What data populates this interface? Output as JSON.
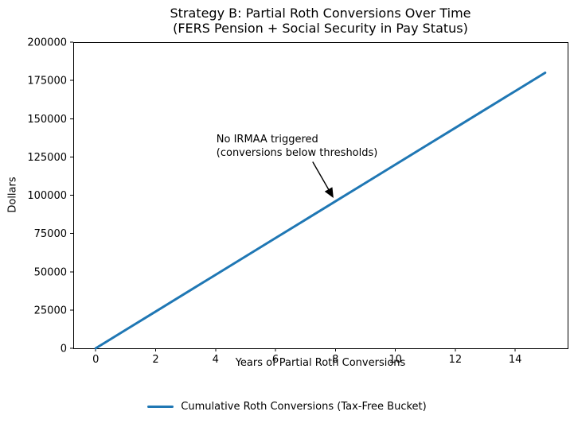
{
  "figure": {
    "title_line1": "Strategy B: Partial Roth Conversions Over Time",
    "title_line2": "(FERS Pension + Social Security in Pay Status)",
    "xlabel": "Years of Partial Roth Conversions",
    "ylabel": "Dollars",
    "legend": {
      "label": "Cumulative Roth Conversions (Tax-Free Bucket)",
      "color": "#1f77b4"
    }
  },
  "chart_data": {
    "type": "line",
    "title": "Strategy B: Partial Roth Conversions Over Time\n(FERS Pension + Social Security in Pay Status)",
    "xlabel": "Years of Partial Roth Conversions",
    "ylabel": "Dollars",
    "x": [
      0,
      1,
      2,
      3,
      4,
      5,
      6,
      7,
      8,
      9,
      10,
      11,
      12,
      13,
      14,
      15
    ],
    "series": [
      {
        "name": "Cumulative Roth Conversions (Tax-Free Bucket)",
        "color": "#1f77b4",
        "line_width": 3,
        "values": [
          0,
          12000,
          24000,
          36000,
          48000,
          60000,
          72000,
          84000,
          96000,
          108000,
          120000,
          132000,
          144000,
          156000,
          168000,
          180000
        ]
      }
    ],
    "xlim": [
      -0.75,
      15.75
    ],
    "ylim": [
      0,
      200000
    ],
    "xticks": [
      0,
      2,
      4,
      6,
      8,
      10,
      12,
      14
    ],
    "yticks": [
      0,
      25000,
      50000,
      75000,
      100000,
      125000,
      150000,
      175000,
      200000
    ],
    "grid": false,
    "legend_position": "lower center outside",
    "annotation": {
      "text": "No IRMAA triggered\n(conversions below thresholds)",
      "xy": [
        8,
        96000
      ],
      "xytext": [
        4,
        140000
      ],
      "arrow_color": "#000000"
    }
  }
}
